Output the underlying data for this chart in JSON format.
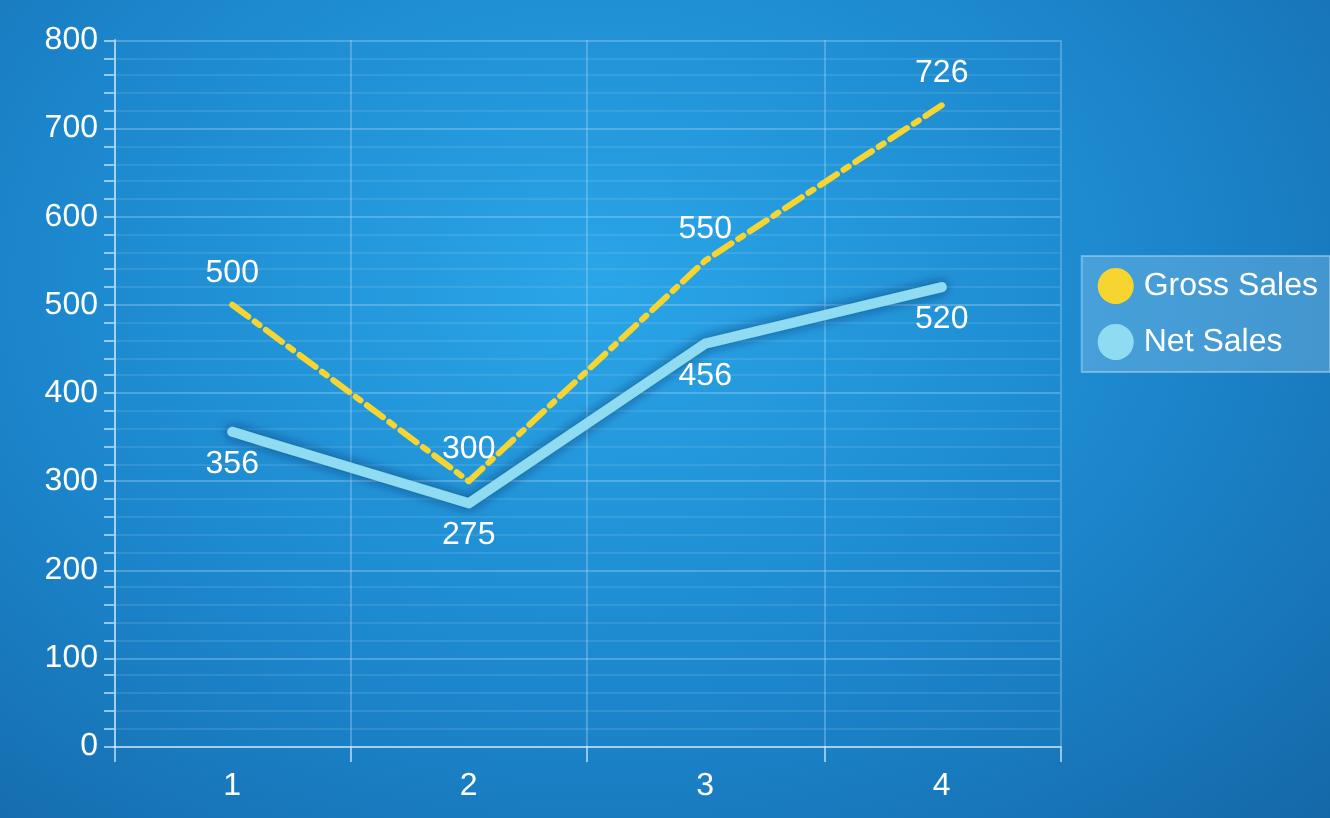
{
  "chart_data": {
    "type": "line",
    "categories": [
      "1",
      "2",
      "3",
      "4"
    ],
    "series": [
      {
        "name": "Gross Sales",
        "color": "#f7d531",
        "values": [
          500,
          300,
          550,
          726
        ],
        "line_style": "dashed"
      },
      {
        "name": "Net Sales",
        "color": "#8fdcf2",
        "values": [
          356,
          275,
          456,
          520
        ],
        "line_style": "solid"
      }
    ],
    "ylim": [
      0,
      800
    ],
    "yticks": [
      0,
      {
        "value": 20,
        "label": null
      },
      {
        "value": 40,
        "label": null
      },
      {
        "value": 60,
        "label": null
      },
      {
        "value": 80,
        "label": null
      },
      100,
      {
        "value": 120,
        "label": null
      },
      {
        "value": 140,
        "label": null
      },
      {
        "value": 160,
        "label": null
      },
      {
        "value": 180,
        "label": null
      },
      200,
      {
        "value": 220,
        "label": null
      },
      {
        "value": 240,
        "label": null
      },
      {
        "value": 260,
        "label": null
      },
      {
        "value": 280,
        "label": null
      },
      300,
      {
        "value": 320,
        "label": null
      },
      {
        "value": 340,
        "label": null
      },
      {
        "value": 360,
        "label": null
      },
      {
        "value": 380,
        "label": null
      },
      400,
      {
        "value": 420,
        "label": null
      },
      {
        "value": 440,
        "label": null
      },
      {
        "value": 460,
        "label": null
      },
      {
        "value": 480,
        "label": null
      },
      500,
      {
        "value": 520,
        "label": null
      },
      {
        "value": 540,
        "label": null
      },
      {
        "value": 560,
        "label": null
      },
      {
        "value": 580,
        "label": null
      },
      600,
      {
        "value": 620,
        "label": null
      },
      {
        "value": 640,
        "label": null
      },
      {
        "value": 660,
        "label": null
      },
      {
        "value": 680,
        "label": null
      },
      700,
      {
        "value": 720,
        "label": null
      },
      {
        "value": 740,
        "label": null
      },
      {
        "value": 760,
        "label": null
      },
      {
        "value": 780,
        "label": null
      },
      800
    ],
    "grid": true,
    "legend": "right",
    "marker": "none",
    "data_labels": true
  }
}
